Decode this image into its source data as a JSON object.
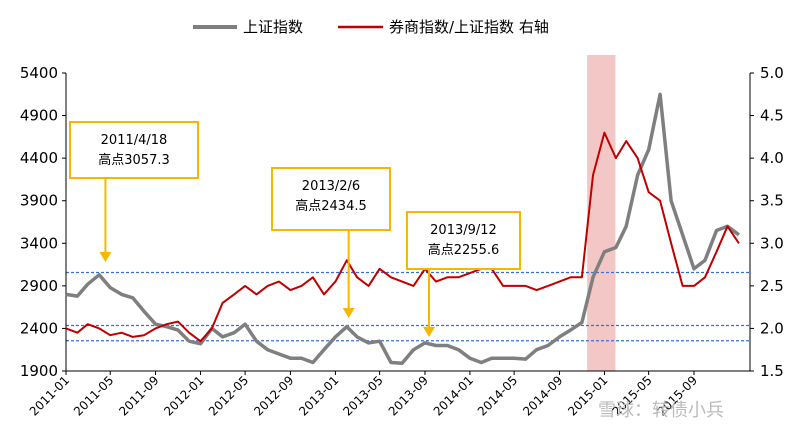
{
  "chart_data": {
    "type": "line",
    "title": "",
    "xlabel": "",
    "ylabel_left": "",
    "ylabel_right": "",
    "x_ticks": [
      "2011-01",
      "2011-05",
      "2011-09",
      "2012-01",
      "2012-05",
      "2012-09",
      "2013-01",
      "2013-05",
      "2013-09",
      "2014-01",
      "2014-05",
      "2014-09",
      "2015-01",
      "2015-05",
      "2015-09"
    ],
    "xlim": [
      "2011-01-01",
      "2016-01-31"
    ],
    "y_left": {
      "ticks": [
        "1900",
        "2400",
        "2900",
        "3400",
        "3900",
        "4400",
        "4900",
        "5400"
      ],
      "range": [
        1900,
        5400
      ]
    },
    "y_right": {
      "ticks": [
        "1.5",
        "2.0",
        "2.5",
        "3.0",
        "3.5",
        "4.0",
        "4.5",
        "5.0"
      ],
      "range": [
        1.5,
        5.0
      ]
    },
    "legend": {
      "placement": "top",
      "entries": [
        "上证指数",
        "券商指数/上证指数 右轴"
      ]
    },
    "series": [
      {
        "name": "上证指数",
        "axis": "left",
        "color": "#7f7f7f",
        "x": [
          "2011-01",
          "2011-02",
          "2011-03",
          "2011-04",
          "2011-05",
          "2011-06",
          "2011-07",
          "2011-08",
          "2011-09",
          "2011-10",
          "2011-11",
          "2011-12",
          "2012-01",
          "2012-02",
          "2012-03",
          "2012-04",
          "2012-05",
          "2012-06",
          "2012-07",
          "2012-08",
          "2012-09",
          "2012-10",
          "2012-11",
          "2012-12",
          "2013-01",
          "2013-02",
          "2013-03",
          "2013-04",
          "2013-05",
          "2013-06",
          "2013-07",
          "2013-08",
          "2013-09",
          "2013-10",
          "2013-11",
          "2013-12",
          "2014-01",
          "2014-02",
          "2014-03",
          "2014-04",
          "2014-05",
          "2014-06",
          "2014-07",
          "2014-08",
          "2014-09",
          "2014-10",
          "2014-11",
          "2014-12",
          "2015-01",
          "2015-02",
          "2015-03",
          "2015-04",
          "2015-05",
          "2015-06",
          "2015-07",
          "2015-08",
          "2015-09",
          "2015-10",
          "2015-11",
          "2015-12",
          "2016-01"
        ],
        "values": [
          2800,
          2780,
          2920,
          3030,
          2880,
          2800,
          2760,
          2600,
          2450,
          2420,
          2380,
          2250,
          2220,
          2400,
          2300,
          2350,
          2450,
          2250,
          2150,
          2100,
          2050,
          2050,
          2000,
          2150,
          2300,
          2420,
          2300,
          2230,
          2250,
          2000,
          1990,
          2150,
          2230,
          2200,
          2200,
          2150,
          2050,
          2000,
          2050,
          2050,
          2050,
          2040,
          2150,
          2200,
          2300,
          2380,
          2470,
          3000,
          3300,
          3350,
          3600,
          4200,
          4500,
          5150,
          3900,
          3500,
          3100,
          3200,
          3550,
          3600,
          3500
        ]
      },
      {
        "name": "券商指数/上证指数 右轴",
        "axis": "right",
        "color": "#c00000",
        "x": [
          "2011-01",
          "2011-02",
          "2011-03",
          "2011-04",
          "2011-05",
          "2011-06",
          "2011-07",
          "2011-08",
          "2011-09",
          "2011-10",
          "2011-11",
          "2011-12",
          "2012-01",
          "2012-02",
          "2012-03",
          "2012-04",
          "2012-05",
          "2012-06",
          "2012-07",
          "2012-08",
          "2012-09",
          "2012-10",
          "2012-11",
          "2012-12",
          "2013-01",
          "2013-02",
          "2013-03",
          "2013-04",
          "2013-05",
          "2013-06",
          "2013-07",
          "2013-08",
          "2013-09",
          "2013-10",
          "2013-11",
          "2013-12",
          "2014-01",
          "2014-02",
          "2014-03",
          "2014-04",
          "2014-05",
          "2014-06",
          "2014-07",
          "2014-08",
          "2014-09",
          "2014-10",
          "2014-11",
          "2014-12",
          "2015-01",
          "2015-02",
          "2015-03",
          "2015-04",
          "2015-05",
          "2015-06",
          "2015-07",
          "2015-08",
          "2015-09",
          "2015-10",
          "2015-11",
          "2015-12",
          "2016-01"
        ],
        "values": [
          2.0,
          1.95,
          2.05,
          2.0,
          1.92,
          1.95,
          1.9,
          1.92,
          2.0,
          2.05,
          2.08,
          1.95,
          1.85,
          2.0,
          2.3,
          2.4,
          2.5,
          2.4,
          2.5,
          2.55,
          2.45,
          2.5,
          2.6,
          2.4,
          2.55,
          2.8,
          2.6,
          2.5,
          2.7,
          2.6,
          2.55,
          2.5,
          2.7,
          2.55,
          2.6,
          2.6,
          2.65,
          2.7,
          2.7,
          2.5,
          2.5,
          2.5,
          2.45,
          2.5,
          2.55,
          2.6,
          2.6,
          3.8,
          4.3,
          4.0,
          4.2,
          4.0,
          3.6,
          3.5,
          3.0,
          2.5,
          2.5,
          2.6,
          2.9,
          3.2,
          3.0
        ]
      }
    ],
    "reference_lines_left": [
      3057.3,
      2434.5,
      2255.6
    ],
    "shaded_region": {
      "from": "2014-11-15",
      "to": "2015-01-31",
      "color": "#f4c7c7"
    },
    "annotations": [
      {
        "date": "2011-04-18",
        "lines": [
          "2011/4/18",
          "高点3057.3"
        ],
        "value": 3057.3
      },
      {
        "date": "2013-02-06",
        "lines": [
          "2013/2/6",
          "高点2434.5"
        ],
        "value": 2434.5
      },
      {
        "date": "2013-09-12",
        "lines": [
          "2013/9/12",
          "高点2255.6"
        ],
        "value": 2255.6
      }
    ]
  },
  "watermark": "雪球：转债小兵"
}
